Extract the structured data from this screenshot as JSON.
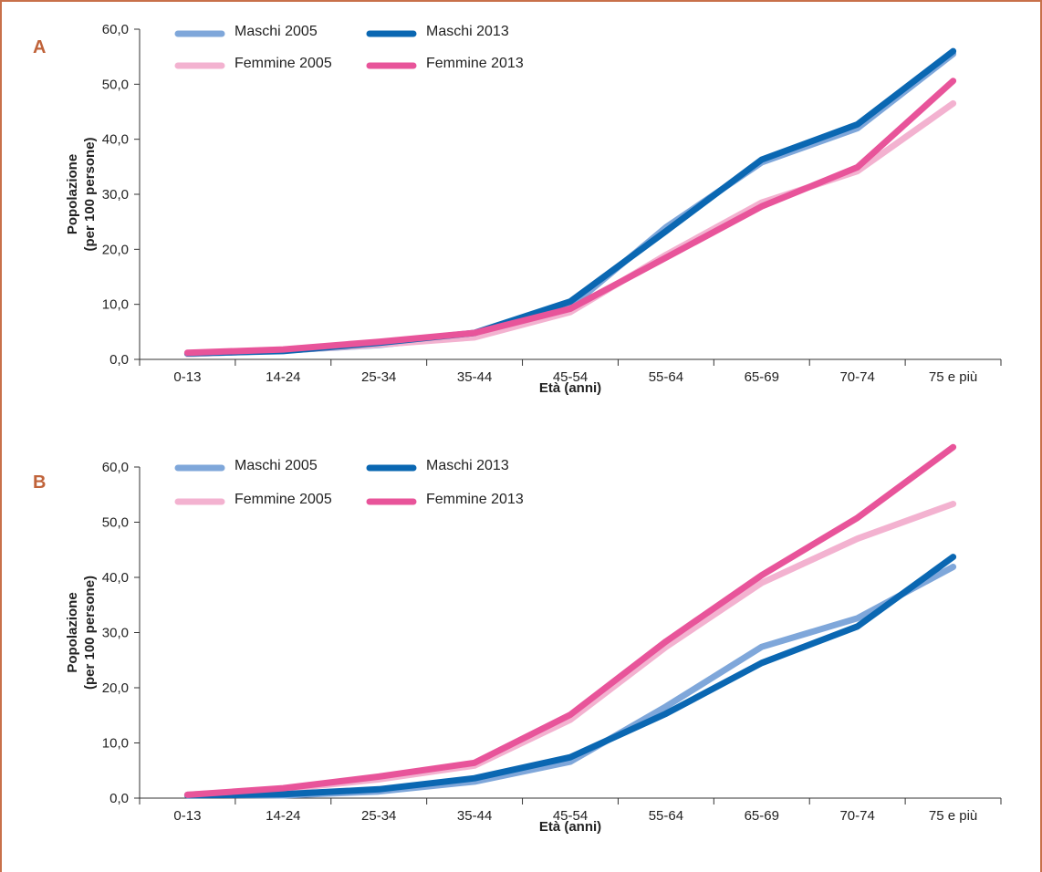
{
  "colors": {
    "frame": "#c8704a",
    "panel_letter": "#c0633a",
    "maschi_2005": "#7fa7da",
    "maschi_2013": "#0a67b2",
    "femmine_2005": "#f3b2d0",
    "femmine_2013": "#e8549a",
    "axis": "#333333"
  },
  "chart_data": [
    {
      "panel": "A",
      "type": "line",
      "xlabel": "Età (anni)",
      "ylabel": [
        "Popolazione",
        "(per 100 persone)"
      ],
      "ylim": [
        0,
        60
      ],
      "yticks": [
        "0,0",
        "10,0",
        "20,0",
        "30,0",
        "40,0",
        "50,0",
        "60,0"
      ],
      "categories": [
        "0-13",
        "14-24",
        "25-34",
        "35-44",
        "45-54",
        "55-64",
        "65-69",
        "70-74",
        "75 e più"
      ],
      "legend": [
        "Maschi 2005",
        "Maschi 2013",
        "Femmine 2005",
        "Femmine 2013"
      ],
      "series": [
        {
          "name": "Maschi 2005",
          "color_key": "maschi_2005",
          "values": [
            1.0,
            1.6,
            2.6,
            4.4,
            9.5,
            24.0,
            35.8,
            42.0,
            55.5
          ]
        },
        {
          "name": "Femmine 2005",
          "color_key": "femmine_2005",
          "values": [
            1.0,
            1.6,
            2.7,
            4.0,
            8.6,
            19.0,
            28.5,
            34.2,
            46.5
          ]
        },
        {
          "name": "Maschi 2013",
          "color_key": "maschi_2013",
          "values": [
            1.1,
            1.5,
            3.0,
            4.8,
            10.5,
            23.3,
            36.3,
            42.7,
            56.0
          ]
        },
        {
          "name": "Femmine 2013",
          "color_key": "femmine_2013",
          "values": [
            1.2,
            1.8,
            3.2,
            4.8,
            9.2,
            18.5,
            27.8,
            34.9,
            50.6
          ]
        }
      ]
    },
    {
      "panel": "B",
      "type": "line",
      "xlabel": "Età (anni)",
      "ylabel": [
        "Popolazione",
        "(per 100 persone)"
      ],
      "ylim": [
        0,
        60
      ],
      "yticks": [
        "0,0",
        "10,0",
        "20,0",
        "30,0",
        "40,0",
        "50,0",
        "60,0"
      ],
      "categories": [
        "0-13",
        "14-24",
        "25-34",
        "35-44",
        "45-54",
        "55-64",
        "65-69",
        "70-74",
        "75 e più"
      ],
      "legend": [
        "Maschi 2005",
        "Maschi 2013",
        "Femmine 2005",
        "Femmine 2013"
      ],
      "series": [
        {
          "name": "Maschi 2005",
          "color_key": "maschi_2005",
          "values": [
            0.6,
            0.5,
            1.2,
            3.0,
            6.6,
            16.6,
            27.4,
            32.6,
            41.9
          ]
        },
        {
          "name": "Femmine 2005",
          "color_key": "femmine_2005",
          "values": [
            0.6,
            1.6,
            3.4,
            5.9,
            14.2,
            27.4,
            39.0,
            47.0,
            53.3
          ]
        },
        {
          "name": "Maschi 2013",
          "color_key": "maschi_2013",
          "values": [
            0.5,
            0.7,
            1.6,
            3.6,
            7.4,
            15.3,
            24.5,
            31.1,
            43.7
          ]
        },
        {
          "name": "Femmine 2013",
          "color_key": "femmine_2013",
          "values": [
            0.6,
            1.8,
            3.9,
            6.4,
            15.1,
            28.4,
            40.4,
            50.8,
            63.6
          ]
        }
      ]
    }
  ]
}
